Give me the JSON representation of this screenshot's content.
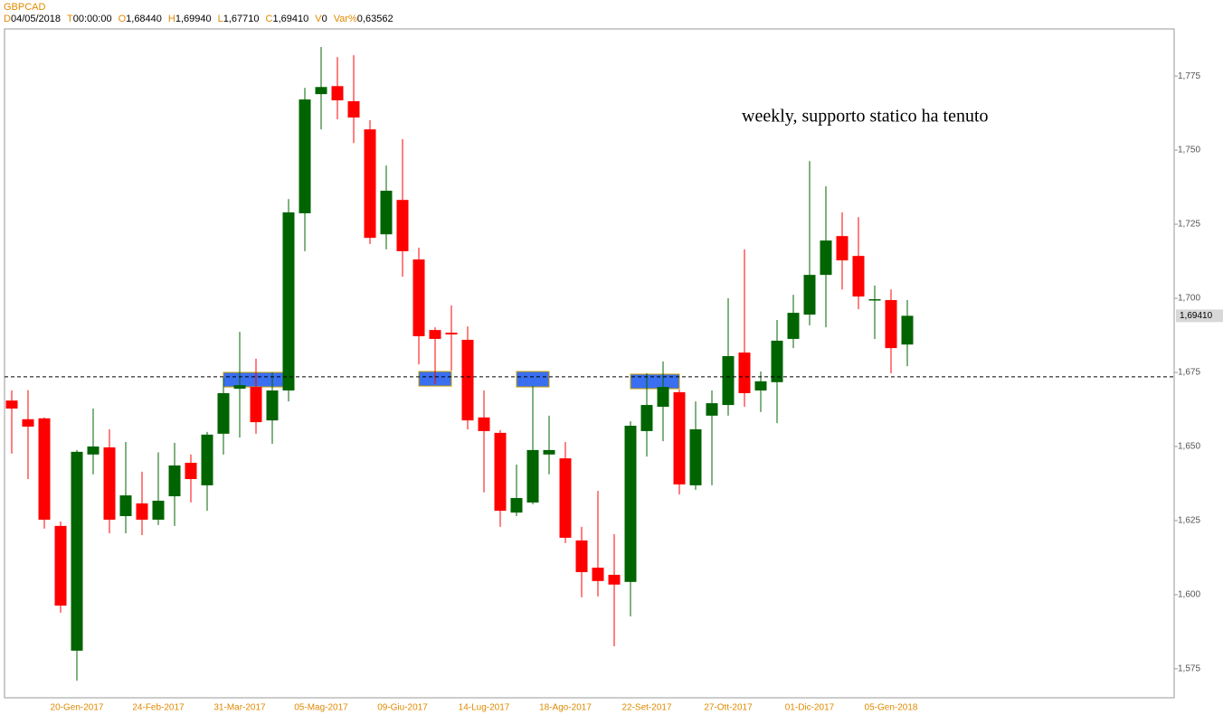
{
  "chart_data": {
    "type": "candlestick",
    "title": "GBPCAD",
    "header": [
      {
        "key": "D",
        "value": "04/05/2018"
      },
      {
        "key": "T",
        "value": "00:00:00"
      },
      {
        "key": "O",
        "value": "1,68440"
      },
      {
        "key": "H",
        "value": "1,69940"
      },
      {
        "key": "L",
        "value": "1,67710"
      },
      {
        "key": "C",
        "value": "1,69410"
      },
      {
        "key": "V",
        "value": "0"
      },
      {
        "key": "Var%",
        "value": "0,63562"
      }
    ],
    "annotation": "weekly, supporto statico ha tenuto",
    "categories": [
      null,
      null,
      null,
      null,
      "20-Gen-2017",
      null,
      null,
      null,
      null,
      "24-Feb-2017",
      null,
      null,
      null,
      null,
      "31-Mar-2017",
      null,
      null,
      null,
      null,
      "05-Mag-2017",
      null,
      null,
      null,
      null,
      "09-Giu-2017",
      null,
      null,
      null,
      null,
      "14-Lug-2017",
      null,
      null,
      null,
      null,
      "18-Ago-2017",
      null,
      null,
      null,
      null,
      "22-Set-2017",
      null,
      null,
      null,
      null,
      "27-Ott-2017",
      null,
      null,
      null,
      null,
      "01-Dic-2017",
      null,
      null,
      null,
      null,
      "05-Gen-2018",
      null
    ],
    "open": [
      1.6655,
      1.6592,
      1.6595,
      1.6232,
      1.5811,
      1.6473,
      1.6497,
      1.6265,
      1.6308,
      1.6253,
      1.6332,
      1.6445,
      1.6369,
      1.6543,
      1.6695,
      1.6701,
      1.6588,
      1.6689,
      1.7287,
      1.7689,
      1.7716,
      1.7665,
      1.757,
      1.7216,
      1.7332,
      1.7131,
      1.6893,
      1.6884,
      1.686,
      1.6598,
      1.6546,
      1.6277,
      1.6311,
      1.6473,
      1.646,
      1.6183,
      1.6091,
      1.6067,
      1.6043,
      1.6552,
      1.6634,
      1.6683,
      1.6369,
      1.6604,
      1.664,
      1.6817,
      1.6689,
      1.6717,
      1.6863,
      1.6945,
      1.7079,
      1.721,
      1.7143,
      1.6994,
      1.6994,
      1.6844
    ],
    "high": [
      1.6689,
      1.669,
      1.6598,
      1.6247,
      1.6488,
      1.6628,
      1.6558,
      1.6515,
      1.6415,
      1.648,
      1.6512,
      1.6473,
      1.6549,
      1.6732,
      1.6887,
      1.6796,
      1.675,
      1.7335,
      1.771,
      1.7848,
      1.7814,
      1.782,
      1.7601,
      1.7448,
      1.7537,
      1.7171,
      1.6902,
      1.6976,
      1.6905,
      1.6689,
      1.6555,
      1.6439,
      1.6704,
      1.6604,
      1.6515,
      1.6229,
      1.635,
      1.6204,
      1.6585,
      1.6747,
      1.6787,
      1.6692,
      1.6652,
      1.6689,
      1.7,
      1.7165,
      1.6753,
      1.6927,
      1.7012,
      1.7463,
      1.7378,
      1.729,
      1.7274,
      1.7043,
      1.703,
      1.6994
    ],
    "low": [
      1.6476,
      1.639,
      1.6223,
      1.5939,
      1.571,
      1.6406,
      1.6207,
      1.6207,
      1.6201,
      1.6235,
      1.6232,
      1.6311,
      1.6283,
      1.6473,
      1.653,
      1.6543,
      1.6509,
      1.6652,
      1.7159,
      1.757,
      1.7604,
      1.7524,
      1.7183,
      1.7165,
      1.7073,
      1.6777,
      1.671,
      1.6756,
      1.6558,
      1.6345,
      1.6229,
      1.6265,
      1.6305,
      1.6406,
      1.6174,
      1.5991,
      1.5994,
      1.5826,
      1.5927,
      1.6466,
      1.6518,
      1.6338,
      1.6354,
      1.6369,
      1.6604,
      1.6634,
      1.6616,
      1.6579,
      1.6832,
      1.6909,
      1.6902,
      1.703,
      1.6963,
      1.6863,
      1.6747,
      1.6771
    ],
    "close": [
      1.6628,
      1.6567,
      1.6253,
      1.5963,
      1.6482,
      1.65,
      1.6253,
      1.6335,
      1.6253,
      1.6317,
      1.6436,
      1.639,
      1.654,
      1.668,
      1.6707,
      1.6582,
      1.6689,
      1.729,
      1.7671,
      1.7713,
      1.7668,
      1.761,
      1.7204,
      1.7363,
      1.7159,
      1.6872,
      1.6863,
      1.6878,
      1.6588,
      1.6552,
      1.6283,
      1.6326,
      1.6488,
      1.6488,
      1.6192,
      1.6076,
      1.6046,
      1.6034,
      1.657,
      1.664,
      1.6701,
      1.6372,
      1.6558,
      1.6646,
      1.6805,
      1.668,
      1.672,
      1.6857,
      1.6951,
      1.7079,
      1.7195,
      1.7128,
      1.7006,
      1.6997,
      1.6832,
      1.6941
    ],
    "up_color": "#006400",
    "down_color": "#ff0000",
    "ylim": [
      1.5652,
      1.7909
    ],
    "yticks": [
      {
        "value": 1.575,
        "label": "1,575"
      },
      {
        "value": 1.6,
        "label": "1,600"
      },
      {
        "value": 1.625,
        "label": "1,625"
      },
      {
        "value": 1.65,
        "label": "1,650"
      },
      {
        "value": 1.675,
        "label": "1,675"
      },
      {
        "value": 1.7,
        "label": "1,700"
      },
      {
        "value": 1.725,
        "label": "1,725"
      },
      {
        "value": 1.75,
        "label": "1,750"
      },
      {
        "value": 1.775,
        "label": "1,775"
      }
    ],
    "last_price": {
      "value": 1.6941,
      "label": "1,69410"
    },
    "support_level": 1.6735,
    "zones": [
      {
        "start": 13,
        "end": 17,
        "low": 1.6701,
        "high": 1.675
      },
      {
        "start": 25,
        "end": 27,
        "low": 1.6704,
        "high": 1.6753
      },
      {
        "start": 31,
        "end": 33,
        "low": 1.6701,
        "high": 1.6753
      },
      {
        "start": 38,
        "end": 41,
        "low": 1.6695,
        "high": 1.6744
      }
    ],
    "zone_color": "#3a6ff0"
  }
}
